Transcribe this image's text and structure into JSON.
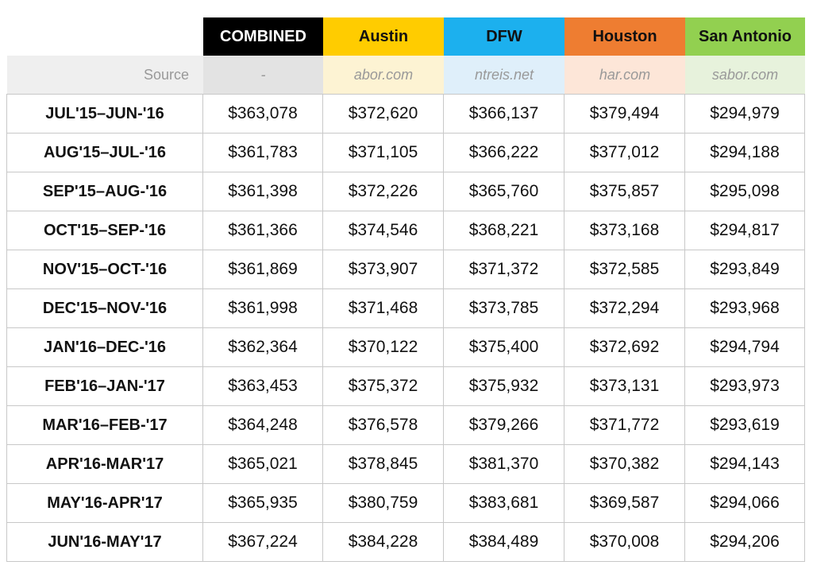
{
  "table": {
    "header": [
      "COMBINED",
      "Austin",
      "DFW",
      "Houston",
      "San Antonio"
    ],
    "source_label": "Source",
    "sources": [
      "-",
      "abor.com",
      "ntreis.net",
      "har.com",
      "sabor.com"
    ],
    "rows": [
      {
        "period": "JUL'15–JUN-'16",
        "values": [
          "$363,078",
          "$372,620",
          "$366,137",
          "$379,494",
          "$294,979"
        ]
      },
      {
        "period": "AUG'15–JUL-'16",
        "values": [
          "$361,783",
          "$371,105",
          "$366,222",
          "$377,012",
          "$294,188"
        ]
      },
      {
        "period": "SEP'15–AUG-'16",
        "values": [
          "$361,398",
          "$372,226",
          "$365,760",
          "$375,857",
          "$295,098"
        ]
      },
      {
        "period": "OCT'15–SEP-'16",
        "values": [
          "$361,366",
          "$374,546",
          "$368,221",
          "$373,168",
          "$294,817"
        ]
      },
      {
        "period": "NOV'15–OCT-'16",
        "values": [
          "$361,869",
          "$373,907",
          "$371,372",
          "$372,585",
          "$293,849"
        ]
      },
      {
        "period": "DEC'15–NOV-'16",
        "values": [
          "$361,998",
          "$371,468",
          "$373,785",
          "$372,294",
          "$293,968"
        ]
      },
      {
        "period": "JAN'16–DEC-'16",
        "values": [
          "$362,364",
          "$370,122",
          "$375,400",
          "$372,692",
          "$294,794"
        ]
      },
      {
        "period": "FEB'16–JAN-'17",
        "values": [
          "$363,453",
          "$375,372",
          "$375,932",
          "$373,131",
          "$293,973"
        ]
      },
      {
        "period": "MAR'16–FEB-'17",
        "values": [
          "$364,248",
          "$376,578",
          "$379,266",
          "$371,772",
          "$293,619"
        ]
      },
      {
        "period": "APR'16-MAR'17",
        "values": [
          "$365,021",
          "$378,845",
          "$381,370",
          "$370,382",
          "$294,143"
        ]
      },
      {
        "period": "MAY'16-APR'17",
        "values": [
          "$365,935",
          "$380,759",
          "$383,681",
          "$369,587",
          "$294,066"
        ]
      },
      {
        "period": "JUN'16-MAY'17",
        "values": [
          "$367,224",
          "$384,228",
          "$384,489",
          "$370,008",
          "$294,206"
        ]
      }
    ]
  }
}
